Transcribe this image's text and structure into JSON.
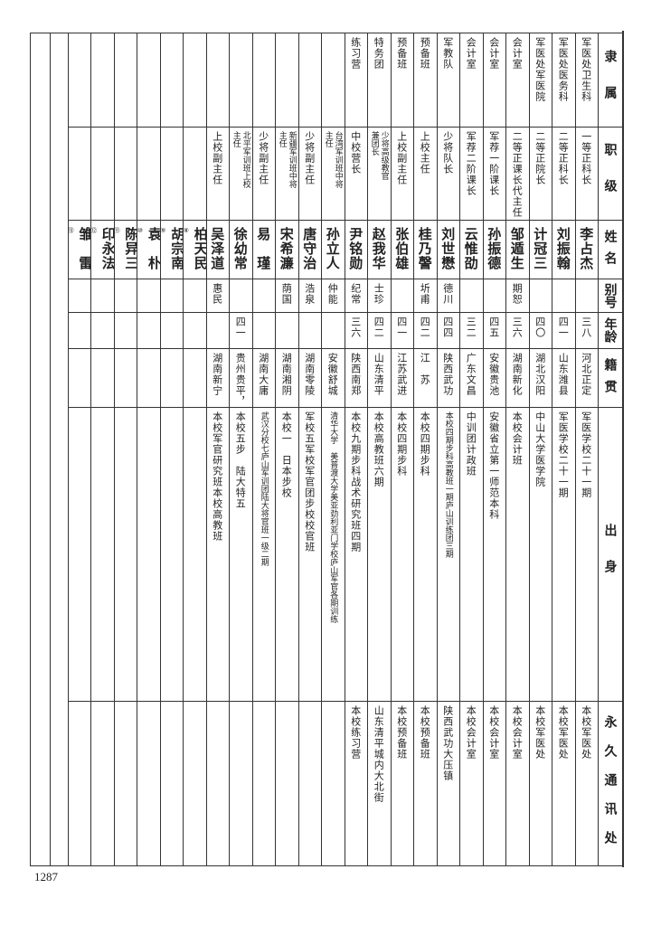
{
  "headers": [
    "隶属",
    "职级",
    "姓名",
    "别号",
    "年龄",
    "籍贯",
    "出身",
    "永久通讯处"
  ],
  "records": [
    {
      "affiliation": "军医处卫生科",
      "rank": [
        "一等正科长"
      ],
      "name": "李占杰",
      "alias": "",
      "age": "三八",
      "native": "河北正定",
      "origin": "军医学校二十一期",
      "address": "本校军医处"
    },
    {
      "affiliation": "军医处医务科",
      "rank": [
        "二等正科长"
      ],
      "name": "刘振翰",
      "alias": "",
      "age": "四一",
      "native": "山东潍县",
      "origin": "军医学校二十一期",
      "address": "本校军医处"
    },
    {
      "affiliation": "军医处军医院",
      "rank": [
        "二等正院长"
      ],
      "name": "计冠三",
      "alias": "",
      "age": "四〇",
      "native": "湖北汉阳",
      "origin": "中山大学医学院",
      "address": "本校军医处"
    },
    {
      "affiliation": "会计室",
      "rank": [
        "二等正课长代主任"
      ],
      "name": "邹遁生",
      "alias": "期恕",
      "age": "三六",
      "native": "湖南新化",
      "origin": "本校会计班",
      "address": "本校会计室"
    },
    {
      "affiliation": "会计室",
      "rank": [
        "军荐一阶课长"
      ],
      "name": "孙振德",
      "alias": "",
      "age": "四五",
      "native": "安徽贵池",
      "origin": "安徽省立第一师范本科",
      "address": "本校会计室"
    },
    {
      "affiliation": "会计室",
      "rank": [
        "军荐二阶课长"
      ],
      "name": "云惟劭",
      "alias": "",
      "age": "三二",
      "native": "广东文昌",
      "origin": "中训团计政班",
      "address": "本校会计室"
    },
    {
      "affiliation": "军教队",
      "rank": [
        "少将队长"
      ],
      "name": "刘世懋",
      "alias": "德川",
      "age": "四四",
      "native": "陕西武功",
      "origin": "本校四期步科高教班一期庐山训练团三期",
      "address": "陕西武功大压镇"
    },
    {
      "affiliation": "预备班",
      "rank": [
        "上校主任"
      ],
      "name": "桂乃謦",
      "alias": "圻甫",
      "age": "四二",
      "native": "江　苏",
      "origin": "本校四期步科",
      "address": "本校预备班"
    },
    {
      "affiliation": "预备班",
      "rank": [
        "上校副主任"
      ],
      "name": "张伯雄",
      "alias": "",
      "age": "四一",
      "native": "江苏武进",
      "origin": "本校四期步科",
      "address": "本校预备班"
    },
    {
      "affiliation": "特务团",
      "rank": [
        "少将高级教官",
        "兼团长"
      ],
      "name": "赵我华",
      "alias": "士珍",
      "age": "四二",
      "native": "山东清平",
      "origin": "本校高教班六期",
      "address": "山东清平城内大北街"
    },
    {
      "affiliation": "练习营",
      "rank": [
        "中校营长"
      ],
      "name": "尹铭勋",
      "alias": "纪常",
      "age": "三六",
      "native": "陕西南郑",
      "origin": "本校九期步科战术研究班四期",
      "address": "本校练习营"
    },
    {
      "affiliation": "",
      "rank": [
        "台湾军训班中将",
        "主任"
      ],
      "name": "孙立人",
      "alias": "仲能",
      "age": "",
      "native": "安徽舒城",
      "origin": "清华大学　美普渡大学美亚劲利亚门学校庐山军官各期训练",
      "address": ""
    },
    {
      "affiliation": "",
      "rank": [
        "少将副主任"
      ],
      "name": "唐守治",
      "alias": "浩泉",
      "age": "",
      "native": "湖南零陵",
      "origin": "军校五军校军官团步校校官班",
      "address": ""
    },
    {
      "affiliation": "",
      "rank": [
        "新疆军训班中将",
        "主任"
      ],
      "name": "宋希濂",
      "alias": "荫国",
      "age": "",
      "native": "湖南湘阴",
      "origin": "本校一　日本步校",
      "address": ""
    },
    {
      "affiliation": "",
      "rank": [
        "少将副主任"
      ],
      "name": "易　瑾",
      "alias": "",
      "age": "",
      "native": "湖南大庸",
      "origin": "武汉分校七庐山军训团陆大将官班一级二期",
      "address": ""
    },
    {
      "affiliation": "",
      "rank": [
        "北平军训班上校",
        "主任"
      ],
      "name": "徐幼常",
      "alias": "",
      "age": "四一",
      "native": "贵州贵平，",
      "origin": "本校五步　陆大特五",
      "address": ""
    },
    {
      "affiliation": "",
      "rank": [
        "上校副主任"
      ],
      "name": "吴泽道",
      "alias": "惠民",
      "age": "",
      "native": "湖南新宁",
      "origin": "本校军官研究班本校高教班",
      "address": ""
    },
    {
      "affiliation": "",
      "rank": [],
      "name": "柏天民",
      "mark": "⑧",
      "alias": "",
      "age": "",
      "native": "",
      "origin": "",
      "address": ""
    },
    {
      "affiliation": "",
      "rank": [],
      "name": "胡宗南",
      "mark": "⑨",
      "alias": "",
      "age": "",
      "native": "",
      "origin": "",
      "address": ""
    },
    {
      "affiliation": "",
      "rank": [],
      "name": "袁　朴",
      "mark": "⑩",
      "alias": "",
      "age": "",
      "native": "",
      "origin": "",
      "address": ""
    },
    {
      "affiliation": "",
      "rank": [],
      "name": "陈异三",
      "mark": "⑪",
      "alias": "",
      "age": "",
      "native": "",
      "origin": "",
      "address": ""
    },
    {
      "affiliation": "",
      "rank": [],
      "name": "印永法",
      "mark": "⑫",
      "alias": "",
      "age": "",
      "native": "",
      "origin": "",
      "address": ""
    },
    {
      "affiliation": "",
      "rank": [],
      "name": "雏　雷",
      "mark": "⑬",
      "alias": "",
      "age": "",
      "native": "",
      "origin": "",
      "address": ""
    }
  ],
  "page_number": "1287"
}
